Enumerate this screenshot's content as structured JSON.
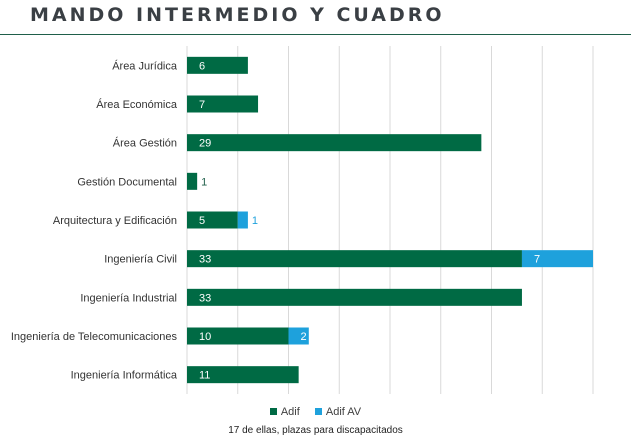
{
  "title": "MANDO INTERMEDIO Y CUADRO",
  "footnote": "17 de ellas, plazas para discapacitados",
  "colors": {
    "Adif": "#006a44",
    "Adif AV": "#1ea1dc",
    "value_outside": "#1f5f4a",
    "value_outside_av": "#1ea1dc"
  },
  "chart_data": {
    "type": "bar",
    "orientation": "horizontal",
    "stacked": true,
    "categories": [
      "Área Jurídica",
      "Área Económica",
      "Área Gestión",
      "Gestión Documental",
      "Arquitectura y Edificación",
      "Ingeniería Civil",
      "Ingeniería Industrial",
      "Ingeniería de Telecomunicaciones",
      "Ingeniería Informática"
    ],
    "series": [
      {
        "name": "Adif",
        "values": [
          6,
          7,
          29,
          1,
          5,
          33,
          33,
          10,
          11
        ]
      },
      {
        "name": "Adif AV",
        "values": [
          null,
          null,
          null,
          null,
          1,
          7,
          null,
          2,
          null
        ]
      }
    ],
    "xlim": [
      0,
      40
    ],
    "grid": true,
    "legend": "bottom"
  }
}
